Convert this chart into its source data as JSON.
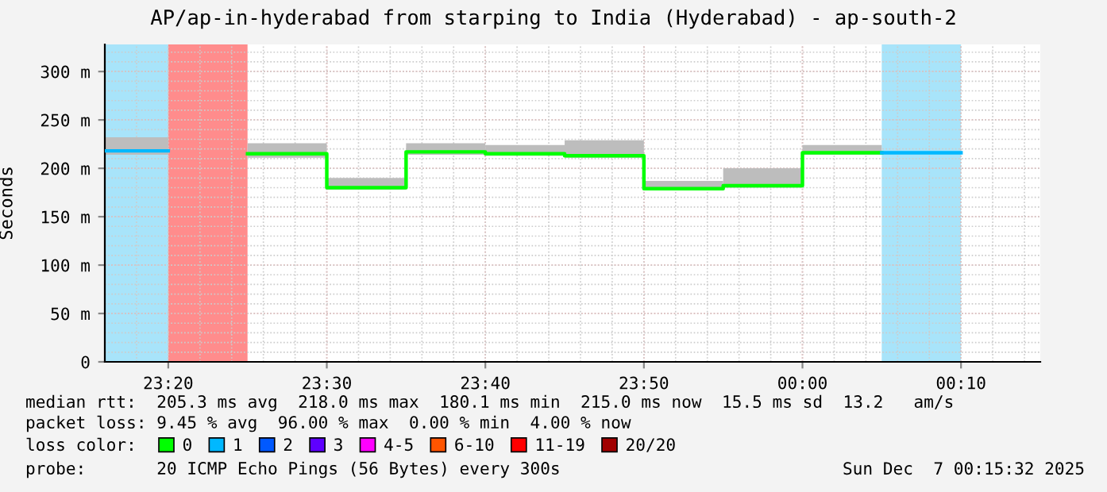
{
  "chart_data": {
    "type": "step",
    "title": "AP/ap-in-hyderabad from starping to India (Hyderabad) - ap-south-2",
    "ylabel": "Seconds",
    "series": [
      {
        "name": "0",
        "color": "#00ff00",
        "x": [
          "2025-12-06T23:25",
          "2025-12-06T23:30",
          "2025-12-06T23:35",
          "2025-12-06T23:40",
          "2025-12-06T23:45",
          "2025-12-06T23:50",
          "2025-12-06T23:55",
          "2025-12-07T00:00",
          "2025-12-07T00:05"
        ],
        "values": [
          215,
          180,
          217,
          215,
          213,
          179,
          182,
          216,
          216
        ],
        "lower": [
          211,
          178,
          214,
          213,
          211,
          178,
          180,
          214,
          214
        ],
        "upper": [
          226,
          190,
          226,
          224,
          229,
          187,
          200,
          224,
          224
        ]
      },
      {
        "name": "1",
        "color": "#00b8ff",
        "x": [
          "2025-12-06T23:16",
          "2025-12-06T23:20",
          "2025-12-07T00:05",
          "2025-12-07T00:10"
        ],
        "values": [
          218,
          null,
          216,
          216
        ],
        "lower": [
          214,
          214,
          null,
          null
        ],
        "upper": [
          232,
          232,
          null,
          null
        ]
      },
      {
        "name": "2",
        "color": "#0059ff"
      },
      {
        "name": "3",
        "color": "#5e00ff"
      },
      {
        "name": "4-5",
        "color": "#ff00ff"
      },
      {
        "name": "6-10",
        "color": "#ff5500"
      },
      {
        "name": "11-19",
        "color": "#ff0000"
      },
      {
        "name": "20/20",
        "color": "#a10000"
      }
    ],
    "bands": [
      {
        "axis": "x",
        "from": "2025-12-06T23:16",
        "to": "2025-12-06T23:20",
        "color": "#a8e4fa"
      },
      {
        "axis": "x",
        "from": "2025-12-06T23:20",
        "to": "2025-12-06T23:25",
        "color": "#ff8c8c"
      },
      {
        "axis": "x",
        "from": "2025-12-07T00:05",
        "to": "2025-12-07T00:10",
        "color": "#a8e4fa"
      }
    ],
    "xlim": [
      "2025-12-06T23:16",
      "2025-12-07T00:15"
    ],
    "xticks": [
      {
        "value": "2025-12-06T23:20",
        "label": "23:20"
      },
      {
        "value": "2025-12-06T23:30",
        "label": "23:30"
      },
      {
        "value": "2025-12-06T23:40",
        "label": "23:40"
      },
      {
        "value": "2025-12-06T23:50",
        "label": "23:50"
      },
      {
        "value": "2025-12-07T00:00",
        "label": "00:00"
      },
      {
        "value": "2025-12-07T00:10",
        "label": "00:10"
      }
    ],
    "ylim": [
      0,
      328
    ],
    "yticks": [
      0,
      {
        "value": 50,
        "label": "50 m"
      },
      {
        "value": 100,
        "label": "100 m"
      },
      {
        "value": 150,
        "label": "150 m"
      },
      {
        "value": 200,
        "label": "200 m"
      },
      {
        "value": 250,
        "label": "250 m"
      },
      {
        "value": 300,
        "label": "300 m"
      }
    ],
    "grid": true,
    "legend": "bottom",
    "legend_title": "loss color:",
    "annotations": [
      "median rtt:  205.3 ms avg  218.0 ms max  180.1 ms min  215.0 ms now  15.5 ms sd  13.2   am/s",
      "packet loss: 9.45 % avg  96.00 % max  0.00 % min  4.00 % now",
      "probe:       20 ICMP Echo Pings (56 Bytes) every 300s",
      "Sun Dec  7 00:15:32 2025"
    ]
  }
}
